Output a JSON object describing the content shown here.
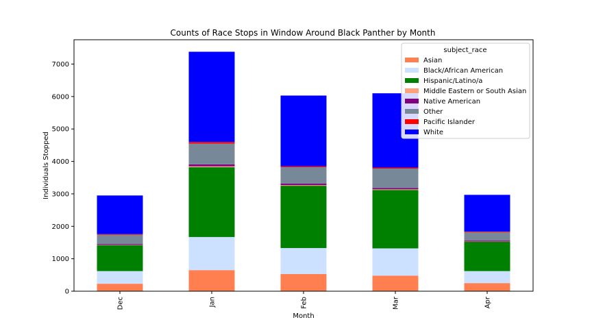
{
  "chart_data": {
    "type": "bar",
    "stacked": true,
    "title": "Counts of Race Stops in Window Around Black Panther by Month",
    "xlabel": "Month",
    "ylabel": "Individuals Stopped",
    "categories": [
      "Dec",
      "Jan",
      "Feb",
      "Mar",
      "Apr"
    ],
    "ylim": [
      0,
      7750
    ],
    "yticks": [
      0,
      1000,
      2000,
      3000,
      4000,
      5000,
      6000,
      7000
    ],
    "grid": false,
    "legend": {
      "title": "subject_race",
      "placement": "top-right"
    },
    "series": [
      {
        "name": "Asian",
        "color": "#ff7f50",
        "values": [
          230,
          650,
          530,
          480,
          250
        ]
      },
      {
        "name": "Black/African American",
        "color": "#cce0ff",
        "values": [
          390,
          1020,
          800,
          840,
          370
        ]
      },
      {
        "name": "Hispanic/Latino/a",
        "color": "#008000",
        "values": [
          800,
          2150,
          1920,
          1800,
          900
        ]
      },
      {
        "name": "Middle Eastern or South Asian",
        "color": "#ffa07a",
        "values": [
          10,
          30,
          20,
          20,
          10
        ]
      },
      {
        "name": "Native American",
        "color": "#800080",
        "values": [
          30,
          60,
          50,
          40,
          30
        ]
      },
      {
        "name": "Other",
        "color": "#778899",
        "values": [
          280,
          640,
          500,
          600,
          260
        ]
      },
      {
        "name": "Pacific Islander",
        "color": "#ff0000",
        "values": [
          20,
          50,
          30,
          30,
          20
        ]
      },
      {
        "name": "White",
        "color": "#0000ff",
        "values": [
          1190,
          2780,
          2180,
          2290,
          1130
        ]
      }
    ]
  }
}
